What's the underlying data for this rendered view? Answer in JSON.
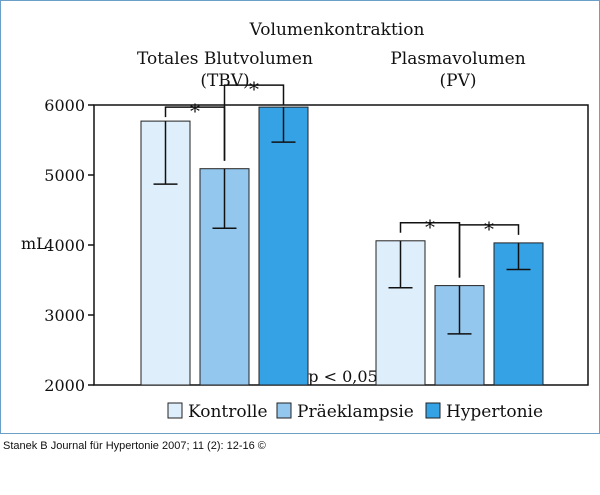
{
  "caption": "Stanek B Journal für Hypertonie 2007; 11 (2): 12-16 ©",
  "colors": {
    "Kontrolle": "#deeefb",
    "Präeklampsie": "#94c7ee",
    "Hypertonie": "#35a2e6",
    "frame": "#6a9fc8"
  },
  "chart_data": {
    "type": "bar",
    "title": "Volumenkontraktion",
    "ylabel": "mL",
    "ylim": [
      2000,
      6000
    ],
    "yticks": [
      2000,
      3000,
      4000,
      5000,
      6000
    ],
    "grid": false,
    "legend_position": "bottom",
    "annotation": "p < 0,05",
    "significance_marker": "*",
    "groups": [
      {
        "title_lines": [
          "Totales Blutvolumen",
          "(TBV)"
        ],
        "bars": [
          {
            "series": "Kontrolle",
            "value": 5770,
            "error_low": 4870
          },
          {
            "series": "Präeklampsie",
            "value": 5090,
            "error_low": 4240
          },
          {
            "series": "Hypertonie",
            "value": 5970,
            "error_low": 5470
          }
        ],
        "significance_pairs": [
          [
            0,
            1
          ],
          [
            1,
            2
          ]
        ]
      },
      {
        "title_lines": [
          "Plasmavolumen",
          "(PV)"
        ],
        "bars": [
          {
            "series": "Kontrolle",
            "value": 4060,
            "error_low": 3390
          },
          {
            "series": "Präeklampsie",
            "value": 3420,
            "error_low": 2730
          },
          {
            "series": "Hypertonie",
            "value": 4030,
            "error_low": 3650
          }
        ],
        "significance_pairs": [
          [
            0,
            1
          ],
          [
            1,
            2
          ]
        ]
      }
    ],
    "legend": [
      "Kontrolle",
      "Präeklampsie",
      "Hypertonie"
    ]
  }
}
